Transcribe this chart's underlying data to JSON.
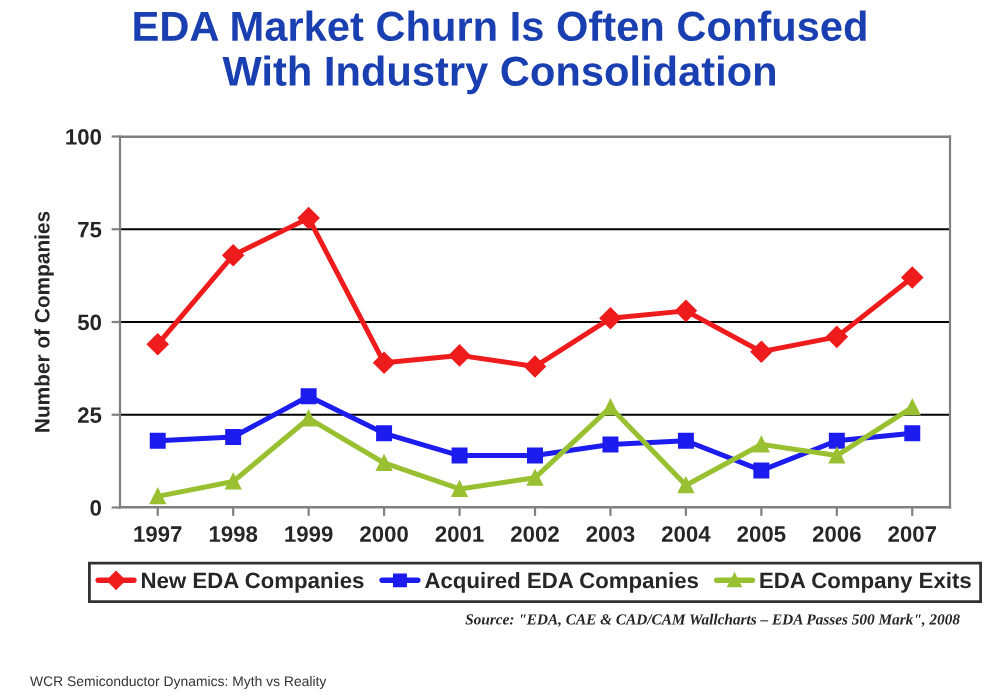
{
  "chart_data": {
    "type": "line",
    "title": "EDA Market Churn Is Often Confused\nWith Industry Consolidation",
    "ylabel": "Number of Companies",
    "categories": [
      "1997",
      "1998",
      "1999",
      "2000",
      "2001",
      "2002",
      "2003",
      "2004",
      "2005",
      "2006",
      "2007"
    ],
    "series": [
      {
        "name": "New EDA Companies",
        "color": "#ee1c1c",
        "marker": "diamond",
        "values": [
          44,
          68,
          78,
          39,
          41,
          38,
          51,
          53,
          42,
          46,
          62
        ]
      },
      {
        "name": "Acquired EDA Companies",
        "color": "#1c1cee",
        "marker": "square",
        "values": [
          18,
          19,
          30,
          20,
          14,
          14,
          17,
          18,
          10,
          18,
          20
        ]
      },
      {
        "name": "EDA Company Exits",
        "color": "#99c031",
        "marker": "triangle",
        "values": [
          3,
          7,
          24,
          12,
          5,
          8,
          27,
          6,
          17,
          14,
          27
        ]
      }
    ],
    "ylim": [
      0,
      100
    ],
    "yticks": [
      0,
      25,
      50,
      75,
      100
    ],
    "grid": "y",
    "legend": "bottom",
    "annotations": [
      "Source: \"EDA, CAE & CAD/CAM Wallcharts – EDA Passes 500 Mark\", 2008",
      "WCR Semiconductor Dynamics: Myth vs Reality"
    ]
  }
}
